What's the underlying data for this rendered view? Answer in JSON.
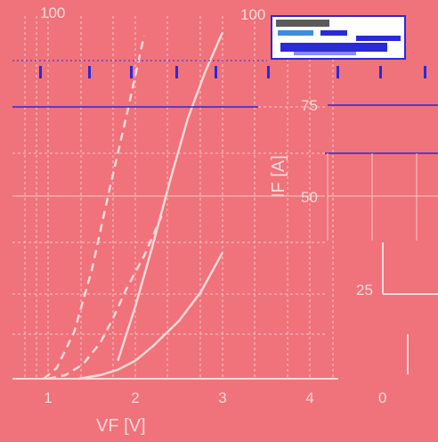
{
  "chart_data": {
    "type": "line",
    "xlabel": "VF [V]",
    "ylabel": "IF [A]",
    "x_ticks": [
      "1",
      "2",
      "3",
      "4"
    ],
    "y_ticks_right": [
      "25",
      "50",
      "75",
      "100"
    ],
    "top_left_label": "100",
    "xlim": [
      0.6,
      5.0
    ],
    "ylim": [
      0,
      100
    ],
    "grid": true,
    "series": [
      {
        "style": "solid",
        "color": "#f7dada",
        "x": [
          1.35,
          1.6,
          1.8,
          2.0,
          2.2,
          2.5,
          2.75,
          3.0
        ],
        "y": [
          0,
          1,
          2.5,
          5,
          9,
          16,
          24,
          35
        ]
      },
      {
        "style": "dashed",
        "color": "#f7dada",
        "x": [
          1.0,
          1.2,
          1.4,
          1.6,
          1.75,
          1.9,
          2.1,
          2.3
        ],
        "y": [
          0,
          1,
          4,
          10,
          17,
          25,
          34,
          45
        ]
      },
      {
        "style": "dashed",
        "color": "#f7dada",
        "x": [
          0.95,
          1.1,
          1.3,
          1.5,
          1.7,
          1.9,
          2.1
        ],
        "y": [
          0,
          3,
          13,
          30,
          52,
          73,
          95
        ]
      },
      {
        "style": "solid",
        "color": "#f7dada",
        "x": [
          1.8,
          2.0,
          2.2,
          2.4,
          2.6,
          2.8,
          3.0
        ],
        "y": [
          5,
          20,
          37,
          55,
          72,
          85,
          96
        ]
      }
    ]
  },
  "right_panel": {
    "x_tick": "0"
  },
  "colors": {
    "background": "#f0727a",
    "grid": "#f7c9cc",
    "accent": "#2a2ad6",
    "curve": "#f7dada"
  }
}
